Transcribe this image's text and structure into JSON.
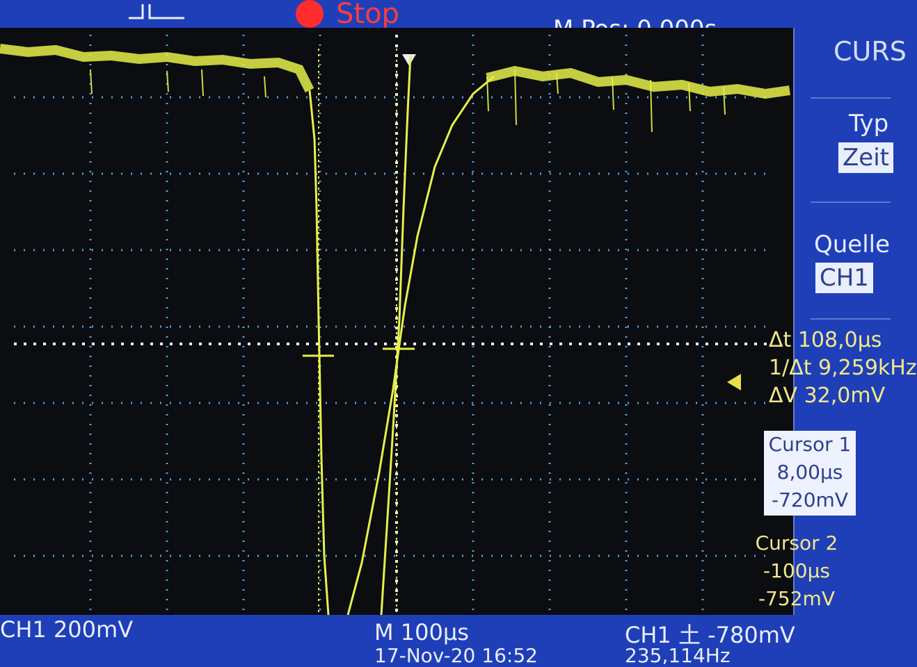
{
  "top": {
    "run_state": "Stop",
    "mpos": "M Pos: 0,000s"
  },
  "menu": {
    "title": "CURS",
    "type_label": "Typ",
    "type_value": "Zeit",
    "source_label": "Quelle",
    "source_value": "CH1"
  },
  "measurements": {
    "delta_t": "Δt 108,0µs",
    "freq": "1/Δt 9,259kHz",
    "delta_v": "ΔV 32,0mV"
  },
  "cursor1": {
    "label": "Cursor 1",
    "time": "8,00µs",
    "volt": "-720mV"
  },
  "cursor2": {
    "label": "Cursor 2",
    "time": "-100µs",
    "volt": "-752mV"
  },
  "bottom": {
    "ch1_scale": "CH1  200mV",
    "timebase": "M 100µs",
    "datetime": "17-Nov-20 16:52",
    "trigger": "CH1 ⼟ -780mV",
    "trigger_freq": "235,114Hz"
  },
  "colors": {
    "trace": "#e6f04a",
    "grid": "#52b8ff",
    "background": "#1f3fb8",
    "stop": "#ff2d2d"
  },
  "icons": {
    "trigger_edge": "trigger-edge-icon",
    "trigger_level": "trigger-level-marker-icon"
  }
}
